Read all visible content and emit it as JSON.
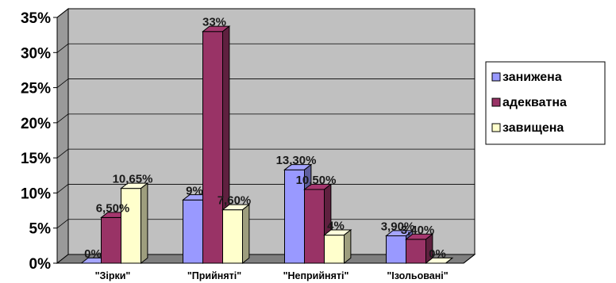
{
  "chart_data": {
    "type": "bar",
    "categories": [
      "\"Зірки\"",
      "\"Прийняті\"",
      "\"Неприйняті\"",
      "\"Ізольовані\""
    ],
    "series": [
      {
        "name": "занижена",
        "color": "#9999ff",
        "values": [
          0,
          9,
          13.3,
          3.9
        ],
        "labels": [
          "0%",
          "9%",
          "13,30%",
          "3,90%"
        ]
      },
      {
        "name": "адекватна",
        "color": "#993366",
        "values": [
          6.5,
          33,
          10.5,
          3.4
        ],
        "labels": [
          "6,50%",
          "33%",
          "10,50%",
          "3,40%"
        ]
      },
      {
        "name": "завищена",
        "color": "#ffffcc",
        "values": [
          10.65,
          7.6,
          4,
          0
        ],
        "labels": [
          "10,65%",
          "7,60%",
          "4%",
          "0%"
        ]
      }
    ],
    "y_ticks": [
      "0%",
      "5%",
      "10%",
      "15%",
      "20%",
      "25%",
      "30%",
      "35%"
    ],
    "ylim": [
      0,
      35
    ],
    "grid": true,
    "legend_position": "right",
    "plot_background": "#c0c0c0",
    "three_d": true
  }
}
